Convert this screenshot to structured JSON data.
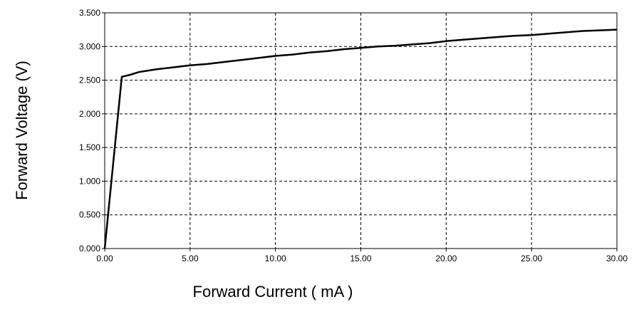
{
  "chart_data": {
    "type": "line",
    "title": "",
    "xlabel": "Forward Current ( mA )",
    "ylabel": "Forward Voltage (V)",
    "xlim": [
      0,
      30
    ],
    "ylim": [
      0,
      3.5
    ],
    "grid": true,
    "x_ticks": [
      0,
      5,
      10,
      15,
      20,
      25,
      30
    ],
    "x_tick_labels": [
      "0.00",
      "5.00",
      "10.00",
      "15.00",
      "20.00",
      "25.00",
      "30.00"
    ],
    "y_ticks": [
      0,
      0.5,
      1,
      1.5,
      2,
      2.5,
      3,
      3.5
    ],
    "y_tick_labels": [
      "0.000",
      "0.500",
      "1.000",
      "1.500",
      "2.000",
      "2.500",
      "3.000",
      "3.500"
    ],
    "series": [
      {
        "x": [
          0,
          1,
          1.5,
          2,
          3,
          4,
          5,
          6,
          7,
          8,
          9,
          10,
          11,
          12,
          13,
          14,
          15,
          16,
          17,
          18,
          19,
          20,
          21,
          22,
          23,
          24,
          25,
          26,
          27,
          28,
          29,
          30
        ],
        "y": [
          0,
          2.55,
          2.58,
          2.62,
          2.66,
          2.69,
          2.72,
          2.74,
          2.77,
          2.8,
          2.83,
          2.86,
          2.88,
          2.91,
          2.93,
          2.96,
          2.98,
          3.0,
          3.01,
          3.03,
          3.05,
          3.08,
          3.1,
          3.12,
          3.14,
          3.16,
          3.17,
          3.19,
          3.21,
          3.23,
          3.24,
          3.25
        ],
        "color": "#000000"
      }
    ]
  }
}
